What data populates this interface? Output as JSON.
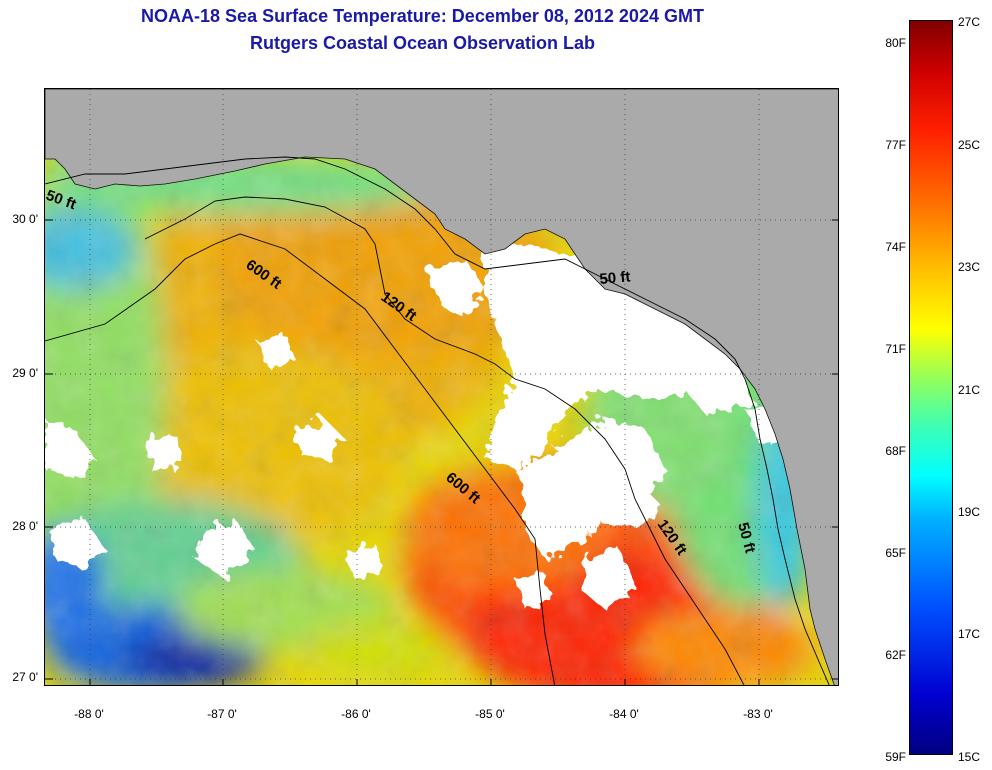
{
  "header": {
    "title": "NOAA-18 Sea Surface Temperature:  December 08, 2012 2024 GMT",
    "subtitle": "Rutgers Coastal Ocean Observation Lab"
  },
  "map": {
    "lat_labels": [
      "30 0'",
      "29 0'",
      "28 0'",
      "27 0'"
    ],
    "lon_labels": [
      "-88 0'",
      "-87 0'",
      "-86 0'",
      "-85 0'",
      "-84 0'",
      "-83 0'"
    ],
    "contour_labels": [
      "50 ft",
      "600 ft",
      "120 ft",
      "50 ft",
      "600 ft",
      "120 ft",
      "50 ft"
    ],
    "colors": {
      "land": "#aaaaaa",
      "cloud": "#ffffff",
      "contour": "#000000"
    }
  },
  "colorbar": {
    "fahrenheit_labels": [
      "80F",
      "77F",
      "74F",
      "71F",
      "68F",
      "65F",
      "62F",
      "59F"
    ],
    "celsius_labels": [
      "27C",
      "25C",
      "23C",
      "21C",
      "19C",
      "17C",
      "15C"
    ]
  }
}
